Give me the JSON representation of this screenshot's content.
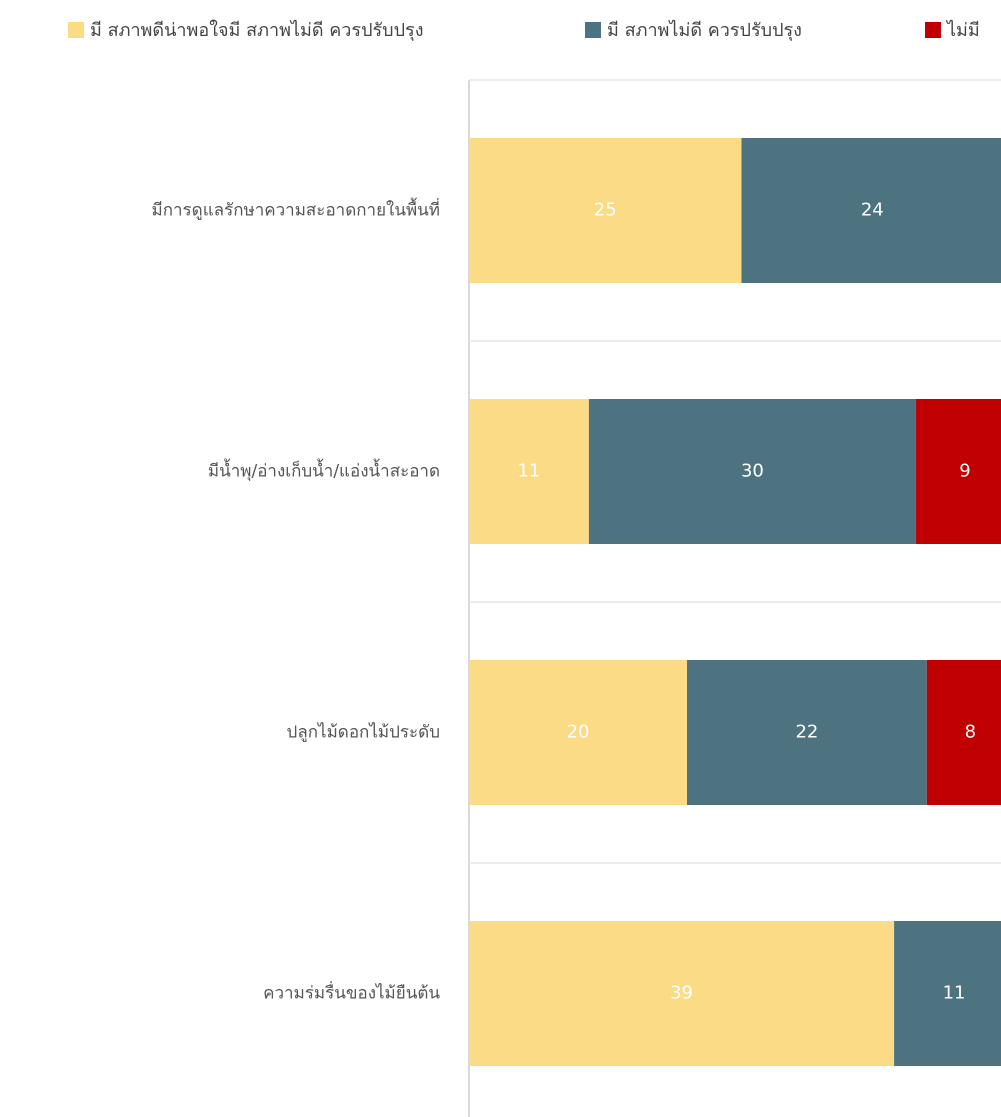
{
  "chart_data": {
    "type": "stacked-bar-horizontal",
    "categories": [
      "มีการดูแลรักษาความสะอาดกายในพื้นที่",
      "มีน้ำพุ/อ่างเก็บน้ำ/แอ่งน้ำสะอาด",
      "ปลูกไม้ดอกไม้ประดับ",
      "ความร่มรื่นของไม้ยืนต้น"
    ],
    "series": [
      {
        "name": "มี สภาพดีน่าพอใจมี สภาพไม่ดี ควรปรับปรุง",
        "color": "#fbdb86",
        "values": [
          25,
          11,
          20,
          39
        ]
      },
      {
        "name": "มี สภาพไม่ดี ควรปรับปรุง",
        "color": "#4d7380",
        "values": [
          24,
          30,
          22,
          11
        ]
      },
      {
        "name": "ไม่มี",
        "color": "#c00000",
        "values": [
          0,
          9,
          8,
          0
        ]
      }
    ],
    "xlim": [
      0,
      50
    ],
    "legend": "top"
  }
}
